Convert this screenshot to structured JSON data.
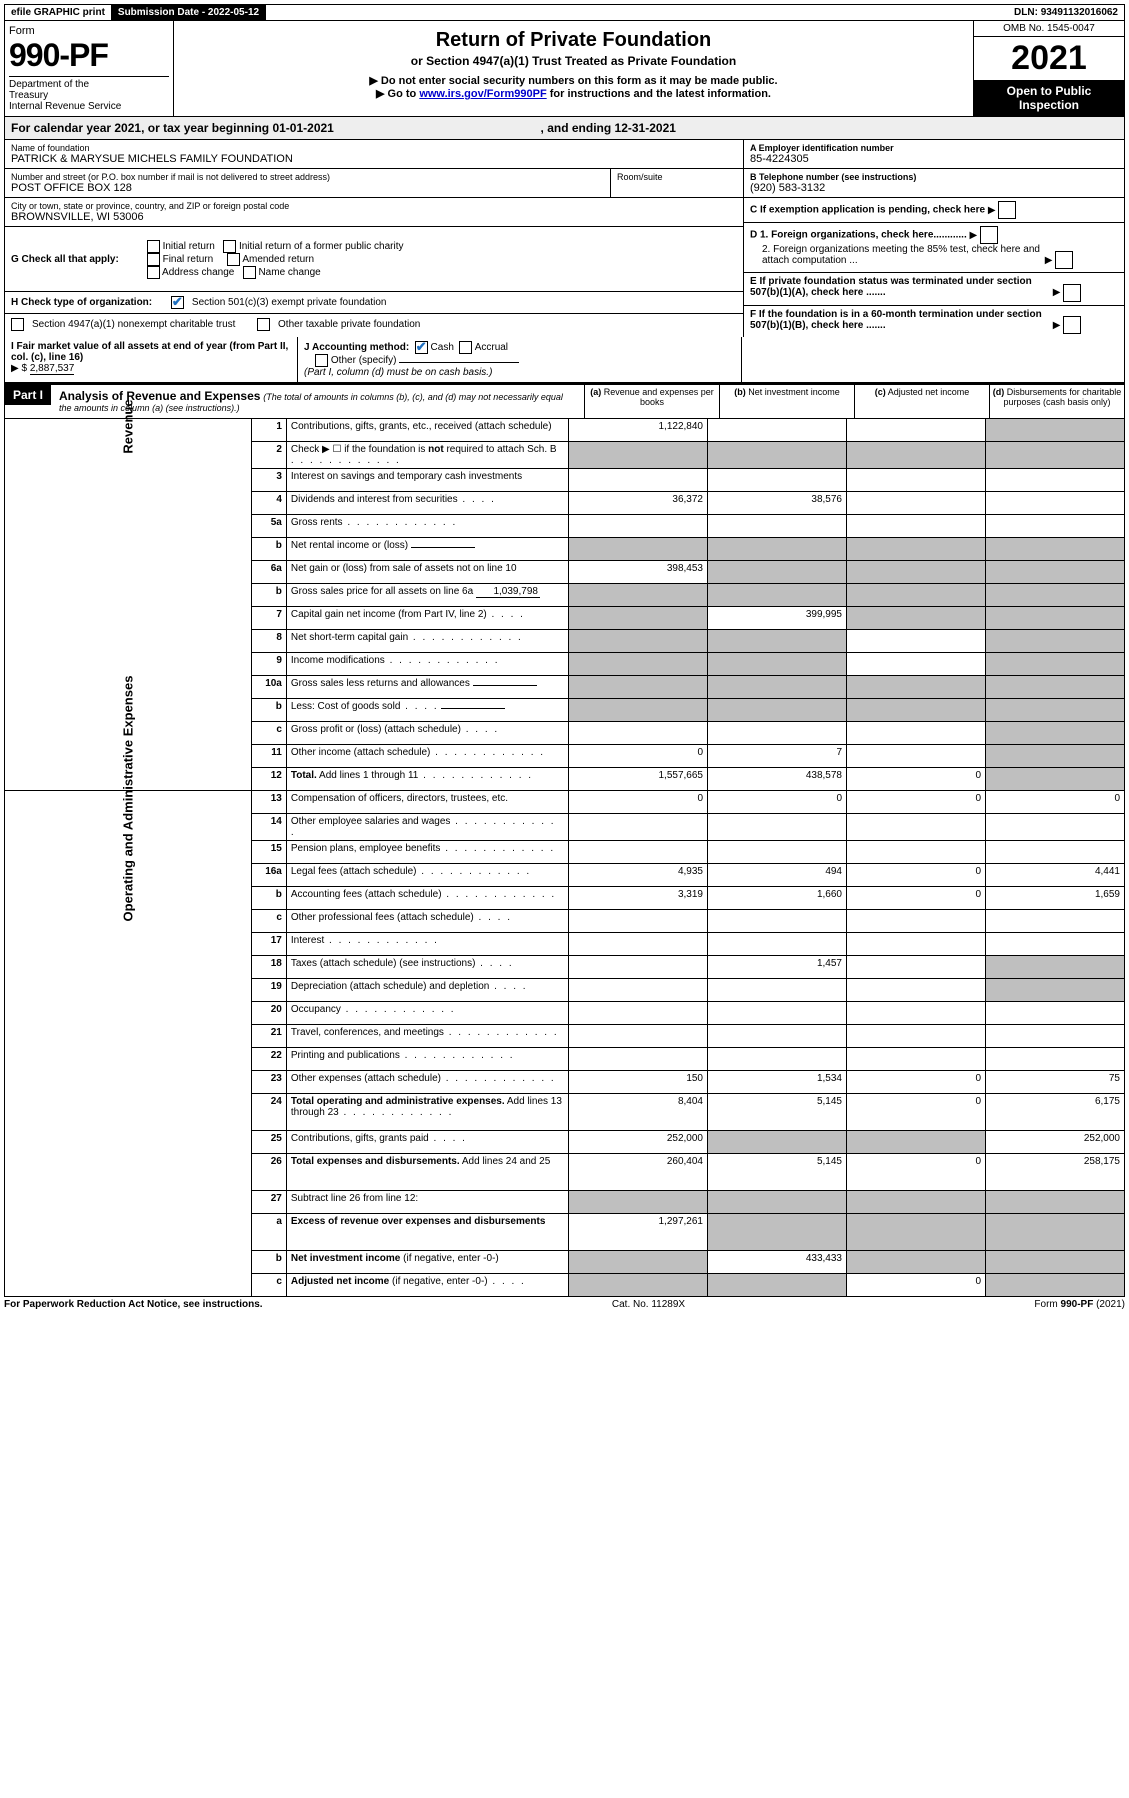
{
  "topbar": {
    "efile": "efile GRAPHIC print",
    "subdate_label": "Submission Date - ",
    "subdate": "2022-05-12",
    "dln_label": "DLN: ",
    "dln": "93491132016062"
  },
  "header": {
    "form_label": "Form",
    "form_number": "990-PF",
    "dept": "Department of the Treasury\nInternal Revenue Service",
    "title": "Return of Private Foundation",
    "subtitle": "or Section 4947(a)(1) Trust Treated as Private Foundation",
    "note1": "▶ Do not enter social security numbers on this form as it may be made public.",
    "note2": "▶ Go to ",
    "link": "www.irs.gov/Form990PF",
    "note3": " for instructions and the latest information.",
    "omb": "OMB No. 1545-0047",
    "year": "2021",
    "open": "Open to Public Inspection"
  },
  "calendar": {
    "text1": "For calendar year 2021, or tax year beginning ",
    "begin": "01-01-2021",
    "text2": ", and ending ",
    "end": "12-31-2021"
  },
  "info": {
    "name_label": "Name of foundation",
    "name": "PATRICK & MARYSUE MICHELS FAMILY FOUNDATION",
    "addr_label": "Number and street (or P.O. box number if mail is not delivered to street address)",
    "addr": "POST OFFICE BOX 128",
    "room_label": "Room/suite",
    "city_label": "City or town, state or province, country, and ZIP or foreign postal code",
    "city": "BROWNSVILLE, WI  53006",
    "a_label": "A Employer identification number",
    "a_val": "85-4224305",
    "b_label": "B Telephone number (see instructions)",
    "b_val": "(920) 583-3132",
    "c_label": "C If exemption application is pending, check here",
    "d1": "D 1. Foreign organizations, check here............",
    "d2": "2. Foreign organizations meeting the 85% test, check here and attach computation ...",
    "e": "E  If private foundation status was terminated under section 507(b)(1)(A), check here .......",
    "f": "F  If the foundation is in a 60-month termination under section 507(b)(1)(B), check here .......",
    "g_label": "G Check all that apply:",
    "g_opts": [
      "Initial return",
      "Initial return of a former public charity",
      "Final return",
      "Amended return",
      "Address change",
      "Name change"
    ],
    "h_label": "H Check type of organization:",
    "h1": "Section 501(c)(3) exempt private foundation",
    "h2": "Section 4947(a)(1) nonexempt charitable trust",
    "h3": "Other taxable private foundation",
    "i_label": "I Fair market value of all assets at end of year (from Part II, col. (c), line 16)",
    "i_val": "2,887,537",
    "j_label": "J Accounting method:",
    "j_opts": [
      "Cash",
      "Accrual",
      "Other (specify)"
    ],
    "j_note": "(Part I, column (d) must be on cash basis.)"
  },
  "part1": {
    "label": "Part I",
    "title": "Analysis of Revenue and Expenses",
    "note": "(The total of amounts in columns (b), (c), and (d) may not necessarily equal the amounts in column (a) (see instructions).)",
    "cols": {
      "a": "(a) Revenue and expenses per books",
      "b": "(b) Net investment income",
      "c": "(c) Adjusted net income",
      "d": "(d) Disbursements for charitable purposes (cash basis only)"
    }
  },
  "sidebars": {
    "rev": "Revenue",
    "ops": "Operating and Administrative Expenses"
  },
  "rows": [
    {
      "n": "1",
      "label": "Contributions, gifts, grants, etc., received (attach schedule)",
      "a": "1,122,840",
      "d_grey": true
    },
    {
      "n": "2",
      "label": "Check ▶ ☐ if the foundation is <b>not</b> required to attach Sch. B",
      "dots": true,
      "all_grey": true
    },
    {
      "n": "3",
      "label": "Interest on savings and temporary cash investments"
    },
    {
      "n": "4",
      "label": "Dividends and interest from securities",
      "dots": "short",
      "a": "36,372",
      "b": "38,576"
    },
    {
      "n": "5a",
      "label": "Gross rents",
      "dots": true
    },
    {
      "n": "b",
      "label": "Net rental income or (loss)",
      "inline": true,
      "all_grey": true
    },
    {
      "n": "6a",
      "label": "Net gain or (loss) from sale of assets not on line 10",
      "a": "398,453",
      "bcd_grey": true
    },
    {
      "n": "b",
      "label": "Gross sales price for all assets on line 6a",
      "inline": true,
      "inline_val": "1,039,798",
      "all_grey": true
    },
    {
      "n": "7",
      "label": "Capital gain net income (from Part IV, line 2)",
      "dots": "short",
      "a_grey": true,
      "b": "399,995",
      "cd_grey": true
    },
    {
      "n": "8",
      "label": "Net short-term capital gain",
      "dots": true,
      "ab_grey": true,
      "d_grey": true
    },
    {
      "n": "9",
      "label": "Income modifications",
      "dots": true,
      "ab_grey": true,
      "d_grey": true
    },
    {
      "n": "10a",
      "label": "Gross sales less returns and allowances",
      "inline": true,
      "all_grey": true
    },
    {
      "n": "b",
      "label": "Less: Cost of goods sold",
      "dots": "short",
      "inline": true,
      "all_grey": true
    },
    {
      "n": "c",
      "label": "Gross profit or (loss) (attach schedule)",
      "dots": "short",
      "d_grey": true
    },
    {
      "n": "11",
      "label": "Other income (attach schedule)",
      "dots": true,
      "a": "0",
      "b": "7",
      "d_grey": true
    },
    {
      "n": "12",
      "label": "<b>Total.</b> Add lines 1 through 11",
      "dots": true,
      "a": "1,557,665",
      "b": "438,578",
      "c": "0",
      "d_grey": true,
      "bold": true
    },
    {
      "n": "13",
      "label": "Compensation of officers, directors, trustees, etc.",
      "a": "0",
      "b": "0",
      "c": "0",
      "d": "0"
    },
    {
      "n": "14",
      "label": "Other employee salaries and wages",
      "dots": true
    },
    {
      "n": "15",
      "label": "Pension plans, employee benefits",
      "dots": true
    },
    {
      "n": "16a",
      "label": "Legal fees (attach schedule)",
      "dots": true,
      "a": "4,935",
      "b": "494",
      "c": "0",
      "d": "4,441"
    },
    {
      "n": "b",
      "label": "Accounting fees (attach schedule)",
      "dots": true,
      "a": "3,319",
      "b": "1,660",
      "c": "0",
      "d": "1,659"
    },
    {
      "n": "c",
      "label": "Other professional fees (attach schedule)",
      "dots": "short"
    },
    {
      "n": "17",
      "label": "Interest",
      "dots": true
    },
    {
      "n": "18",
      "label": "Taxes (attach schedule) (see instructions)",
      "dots": "short",
      "b": "1,457",
      "d_grey": true
    },
    {
      "n": "19",
      "label": "Depreciation (attach schedule) and depletion",
      "dots": "short",
      "d_grey": true
    },
    {
      "n": "20",
      "label": "Occupancy",
      "dots": true
    },
    {
      "n": "21",
      "label": "Travel, conferences, and meetings",
      "dots": true
    },
    {
      "n": "22",
      "label": "Printing and publications",
      "dots": true
    },
    {
      "n": "23",
      "label": "Other expenses (attach schedule)",
      "dots": true,
      "a": "150",
      "b": "1,534",
      "c": "0",
      "d": "75"
    },
    {
      "n": "24",
      "label": "<b>Total operating and administrative expenses.</b> Add lines 13 through 23",
      "dots": true,
      "a": "8,404",
      "b": "5,145",
      "c": "0",
      "d": "6,175",
      "tall": true
    },
    {
      "n": "25",
      "label": "Contributions, gifts, grants paid",
      "dots": "short",
      "a": "252,000",
      "bc_grey": true,
      "d": "252,000"
    },
    {
      "n": "26",
      "label": "<b>Total expenses and disbursements.</b> Add lines 24 and 25",
      "a": "260,404",
      "b": "5,145",
      "c": "0",
      "d": "258,175",
      "tall": true
    },
    {
      "n": "27",
      "label": "Subtract line 26 from line 12:",
      "all_grey": true
    },
    {
      "n": "a",
      "label": "<b>Excess of revenue over expenses and disbursements</b>",
      "a": "1,297,261",
      "bcd_grey": true,
      "tall": true
    },
    {
      "n": "b",
      "label": "<b>Net investment income</b> (if negative, enter -0-)",
      "a_grey": true,
      "b": "433,433",
      "cd_grey": true
    },
    {
      "n": "c",
      "label": "<b>Adjusted net income</b> (if negative, enter -0-)",
      "dots": "short",
      "ab_grey": true,
      "c": "0",
      "d_grey": true
    }
  ],
  "footer": {
    "left": "For Paperwork Reduction Act Notice, see instructions.",
    "mid": "Cat. No. 11289X",
    "right": "Form 990-PF (2021)"
  }
}
